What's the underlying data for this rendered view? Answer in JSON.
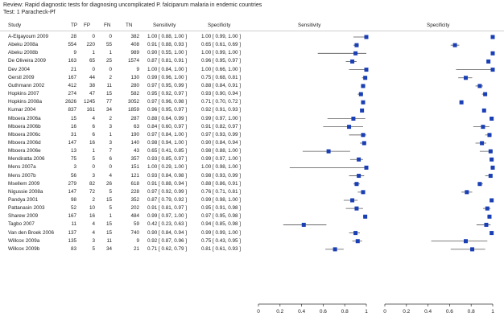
{
  "review": "Review:  Rapid diagnostic tests for diagnosing uncomplicated P. falciparum malaria in endemic countries",
  "test": "Test:  1 Paracheck-Pf",
  "columns": {
    "study": "Study",
    "tp": "TP",
    "fp": "FP",
    "fn": "FN",
    "tn": "TN",
    "sensitivity": "Sensitivity",
    "specificity": "Specificity",
    "sens_plot": "Sensitivity",
    "spec_plot": "Specificity"
  },
  "chart_data": {
    "type": "forest",
    "axis_ticks": [
      "0",
      "0.2",
      "0.4",
      "0.6",
      "0.8",
      "1"
    ],
    "xlim": [
      0,
      1
    ],
    "marker_color": "#1a3fb5",
    "rows": [
      {
        "study": "A-Elgayoum 2009",
        "tp": 28,
        "fp": 0,
        "fn": 0,
        "tn": 382,
        "sens": 1.0,
        "sens_ci": [
          0.88,
          1.0
        ],
        "spec": 1.0,
        "spec_ci": [
          0.99,
          1.0
        ],
        "sens_txt": "1.00 [ 0.88, 1.00 ]",
        "spec_txt": "1.00 [ 0.99, 1.00 ]"
      },
      {
        "study": "Abeku 2008a",
        "tp": 554,
        "fp": 220,
        "fn": 55,
        "tn": 408,
        "sens": 0.91,
        "sens_ci": [
          0.88,
          0.93
        ],
        "spec": 0.65,
        "spec_ci": [
          0.61,
          0.69
        ],
        "sens_txt": "0.91 [ 0.88, 0.93 ]",
        "spec_txt": "0.65 [ 0.61, 0.69 ]"
      },
      {
        "study": "Abeku 2008b",
        "tp": 9,
        "fp": 1,
        "fn": 1,
        "tn": 989,
        "sens": 0.9,
        "sens_ci": [
          0.55,
          1.0
        ],
        "spec": 1.0,
        "spec_ci": [
          0.99,
          1.0
        ],
        "sens_txt": "0.90 [ 0.55, 1.00 ]",
        "spec_txt": "1.00 [ 0.99, 1.00 ]"
      },
      {
        "study": "De Oliveira 2009",
        "tp": 163,
        "fp": 65,
        "fn": 25,
        "tn": 1574,
        "sens": 0.87,
        "sens_ci": [
          0.81,
          0.91
        ],
        "spec": 0.96,
        "spec_ci": [
          0.95,
          0.97
        ],
        "sens_txt": "0.87 [ 0.81, 0.91 ]",
        "spec_txt": "0.96 [ 0.95, 0.97 ]"
      },
      {
        "study": "Dev 2004",
        "tp": 21,
        "fp": 0,
        "fn": 0,
        "tn": 9,
        "sens": 1.0,
        "sens_ci": [
          0.84,
          1.0
        ],
        "spec": 1.0,
        "spec_ci": [
          0.66,
          1.0
        ],
        "sens_txt": "1.00 [ 0.84, 1.00 ]",
        "spec_txt": "1.00 [ 0.66, 1.00 ]"
      },
      {
        "study": "Gerstl 2009",
        "tp": 167,
        "fp": 44,
        "fn": 2,
        "tn": 130,
        "sens": 0.99,
        "sens_ci": [
          0.96,
          1.0
        ],
        "spec": 0.75,
        "spec_ci": [
          0.68,
          0.81
        ],
        "sens_txt": "0.99 [ 0.96, 1.00 ]",
        "spec_txt": "0.75 [ 0.68, 0.81 ]"
      },
      {
        "study": "Guthmann 2002",
        "tp": 412,
        "fp": 38,
        "fn": 11,
        "tn": 280,
        "sens": 0.97,
        "sens_ci": [
          0.95,
          0.99
        ],
        "spec": 0.88,
        "spec_ci": [
          0.84,
          0.91
        ],
        "sens_txt": "0.97 [ 0.95, 0.99 ]",
        "spec_txt": "0.88 [ 0.84, 0.91 ]"
      },
      {
        "study": "Hopkins 2007",
        "tp": 274,
        "fp": 47,
        "fn": 15,
        "tn": 582,
        "sens": 0.95,
        "sens_ci": [
          0.92,
          0.97
        ],
        "spec": 0.93,
        "spec_ci": [
          0.9,
          0.94
        ],
        "sens_txt": "0.95 [ 0.92, 0.97 ]",
        "spec_txt": "0.93 [ 0.90, 0.94 ]"
      },
      {
        "study": "Hopkins 2008a",
        "tp": 2626,
        "fp": 1245,
        "fn": 77,
        "tn": 3052,
        "sens": 0.97,
        "sens_ci": [
          0.96,
          0.98
        ],
        "spec": 0.71,
        "spec_ci": [
          0.7,
          0.72
        ],
        "sens_txt": "0.97 [ 0.96, 0.98 ]",
        "spec_txt": "0.71 [ 0.70, 0.72 ]"
      },
      {
        "study": "Kumar 2004",
        "tp": 837,
        "fp": 161,
        "fn": 34,
        "tn": 1859,
        "sens": 0.96,
        "sens_ci": [
          0.95,
          0.97
        ],
        "spec": 0.92,
        "spec_ci": [
          0.91,
          0.93
        ],
        "sens_txt": "0.96 [ 0.95, 0.97 ]",
        "spec_txt": "0.92 [ 0.91, 0.93 ]"
      },
      {
        "study": "Mboera 2006a",
        "tp": 15,
        "fp": 4,
        "fn": 2,
        "tn": 287,
        "sens": 0.88,
        "sens_ci": [
          0.64,
          0.99
        ],
        "spec": 0.99,
        "spec_ci": [
          0.97,
          1.0
        ],
        "sens_txt": "0.88 [ 0.64, 0.99 ]",
        "spec_txt": "0.99 [ 0.97, 1.00 ]"
      },
      {
        "study": "Mboera 2006b",
        "tp": 16,
        "fp": 6,
        "fn": 3,
        "tn": 63,
        "sens": 0.84,
        "sens_ci": [
          0.6,
          0.97
        ],
        "spec": 0.91,
        "spec_ci": [
          0.82,
          0.97
        ],
        "sens_txt": "0.84 [ 0.60, 0.97 ]",
        "spec_txt": "0.91 [ 0.82, 0.97 ]"
      },
      {
        "study": "Mboera 2006c",
        "tp": 31,
        "fp": 6,
        "fn": 1,
        "tn": 190,
        "sens": 0.97,
        "sens_ci": [
          0.84,
          1.0
        ],
        "spec": 0.97,
        "spec_ci": [
          0.93,
          0.99
        ],
        "sens_txt": "0.97 [ 0.84, 1.00 ]",
        "spec_txt": "0.97 [ 0.93, 0.99 ]"
      },
      {
        "study": "Mboera 2006d",
        "tp": 147,
        "fp": 16,
        "fn": 3,
        "tn": 140,
        "sens": 0.98,
        "sens_ci": [
          0.94,
          1.0
        ],
        "spec": 0.9,
        "spec_ci": [
          0.84,
          0.94
        ],
        "sens_txt": "0.98 [ 0.94, 1.00 ]",
        "spec_txt": "0.90 [ 0.84, 0.94 ]"
      },
      {
        "study": "Mboera 2006e",
        "tp": 13,
        "fp": 1,
        "fn": 7,
        "tn": 43,
        "sens": 0.65,
        "sens_ci": [
          0.41,
          0.85
        ],
        "spec": 0.98,
        "spec_ci": [
          0.88,
          1.0
        ],
        "sens_txt": "0.65 [ 0.41, 0.85 ]",
        "spec_txt": "0.98 [ 0.88, 1.00 ]"
      },
      {
        "study": "Mendiratta 2006",
        "tp": 75,
        "fp": 5,
        "fn": 6,
        "tn": 357,
        "sens": 0.93,
        "sens_ci": [
          0.85,
          0.97
        ],
        "spec": 0.99,
        "spec_ci": [
          0.97,
          1.0
        ],
        "sens_txt": "0.93 [ 0.85, 0.97 ]",
        "spec_txt": "0.99 [ 0.97, 1.00 ]"
      },
      {
        "study": "Mens 2007a",
        "tp": 3,
        "fp": 0,
        "fn": 0,
        "tn": 151,
        "sens": 1.0,
        "sens_ci": [
          0.29,
          1.0
        ],
        "spec": 1.0,
        "spec_ci": [
          0.98,
          1.0
        ],
        "sens_txt": "1.00 [ 0.29, 1.00 ]",
        "spec_txt": "1.00 [ 0.98, 1.00 ]"
      },
      {
        "study": "Mens 2007b",
        "tp": 56,
        "fp": 3,
        "fn": 4,
        "tn": 121,
        "sens": 0.93,
        "sens_ci": [
          0.84,
          0.98
        ],
        "spec": 0.98,
        "spec_ci": [
          0.93,
          0.99
        ],
        "sens_txt": "0.93 [ 0.84, 0.98 ]",
        "spec_txt": "0.98 [ 0.93, 0.99 ]"
      },
      {
        "study": "Msellem 2009",
        "tp": 279,
        "fp": 82,
        "fn": 26,
        "tn": 618,
        "sens": 0.91,
        "sens_ci": [
          0.88,
          0.94
        ],
        "spec": 0.88,
        "spec_ci": [
          0.86,
          0.91
        ],
        "sens_txt": "0.91 [ 0.88, 0.94 ]",
        "spec_txt": "0.88 [ 0.86, 0.91 ]"
      },
      {
        "study": "Nigussie 2008a",
        "tp": 147,
        "fp": 72,
        "fn": 5,
        "tn": 228,
        "sens": 0.97,
        "sens_ci": [
          0.92,
          0.99
        ],
        "spec": 0.76,
        "spec_ci": [
          0.71,
          0.81
        ],
        "sens_txt": "0.97 [ 0.92, 0.99 ]",
        "spec_txt": "0.76 [ 0.71, 0.81 ]"
      },
      {
        "study": "Pandya 2001",
        "tp": 98,
        "fp": 2,
        "fn": 15,
        "tn": 352,
        "sens": 0.87,
        "sens_ci": [
          0.79,
          0.92
        ],
        "spec": 0.99,
        "spec_ci": [
          0.98,
          1.0
        ],
        "sens_txt": "0.87 [ 0.79, 0.92 ]",
        "spec_txt": "0.99 [ 0.98, 1.00 ]"
      },
      {
        "study": "Pattanasin 2003",
        "tp": 52,
        "fp": 10,
        "fn": 5,
        "tn": 202,
        "sens": 0.91,
        "sens_ci": [
          0.81,
          0.97
        ],
        "spec": 0.95,
        "spec_ci": [
          0.91,
          0.98
        ],
        "sens_txt": "0.91 [ 0.81, 0.97 ]",
        "spec_txt": "0.95 [ 0.91, 0.98 ]"
      },
      {
        "study": "Sharew 2009",
        "tp": 167,
        "fp": 16,
        "fn": 1,
        "tn": 484,
        "sens": 0.99,
        "sens_ci": [
          0.97,
          1.0
        ],
        "spec": 0.97,
        "spec_ci": [
          0.95,
          0.98
        ],
        "sens_txt": "0.99 [ 0.97, 1.00 ]",
        "spec_txt": "0.97 [ 0.95, 0.98 ]"
      },
      {
        "study": "Tagbo 2007",
        "tp": 11,
        "fp": 4,
        "fn": 15,
        "tn": 59,
        "sens": 0.42,
        "sens_ci": [
          0.23,
          0.63
        ],
        "spec": 0.94,
        "spec_ci": [
          0.85,
          0.98
        ],
        "sens_txt": "0.42 [ 0.23, 0.63 ]",
        "spec_txt": "0.94 [ 0.85, 0.98 ]"
      },
      {
        "study": "Van den Broek 2006",
        "tp": 137,
        "fp": 4,
        "fn": 15,
        "tn": 740,
        "sens": 0.9,
        "sens_ci": [
          0.84,
          0.94
        ],
        "spec": 0.99,
        "spec_ci": [
          0.99,
          1.0
        ],
        "sens_txt": "0.90 [ 0.84, 0.94 ]",
        "spec_txt": "0.99 [ 0.99, 1.00 ]"
      },
      {
        "study": "Willcox 2009a",
        "tp": 135,
        "fp": 3,
        "fn": 11,
        "tn": 9,
        "sens": 0.92,
        "sens_ci": [
          0.87,
          0.96
        ],
        "spec": 0.75,
        "spec_ci": [
          0.43,
          0.95
        ],
        "sens_txt": "0.92 [ 0.87, 0.96 ]",
        "spec_txt": "0.75 [ 0.43, 0.95 ]"
      },
      {
        "study": "Willcox 2009b",
        "tp": 83,
        "fp": 5,
        "fn": 34,
        "tn": 21,
        "sens": 0.71,
        "sens_ci": [
          0.62,
          0.79
        ],
        "spec": 0.81,
        "spec_ci": [
          0.61,
          0.93
        ],
        "sens_txt": "0.71 [ 0.62, 0.79 ]",
        "spec_txt": "0.81 [ 0.61, 0.93 ]"
      }
    ]
  }
}
